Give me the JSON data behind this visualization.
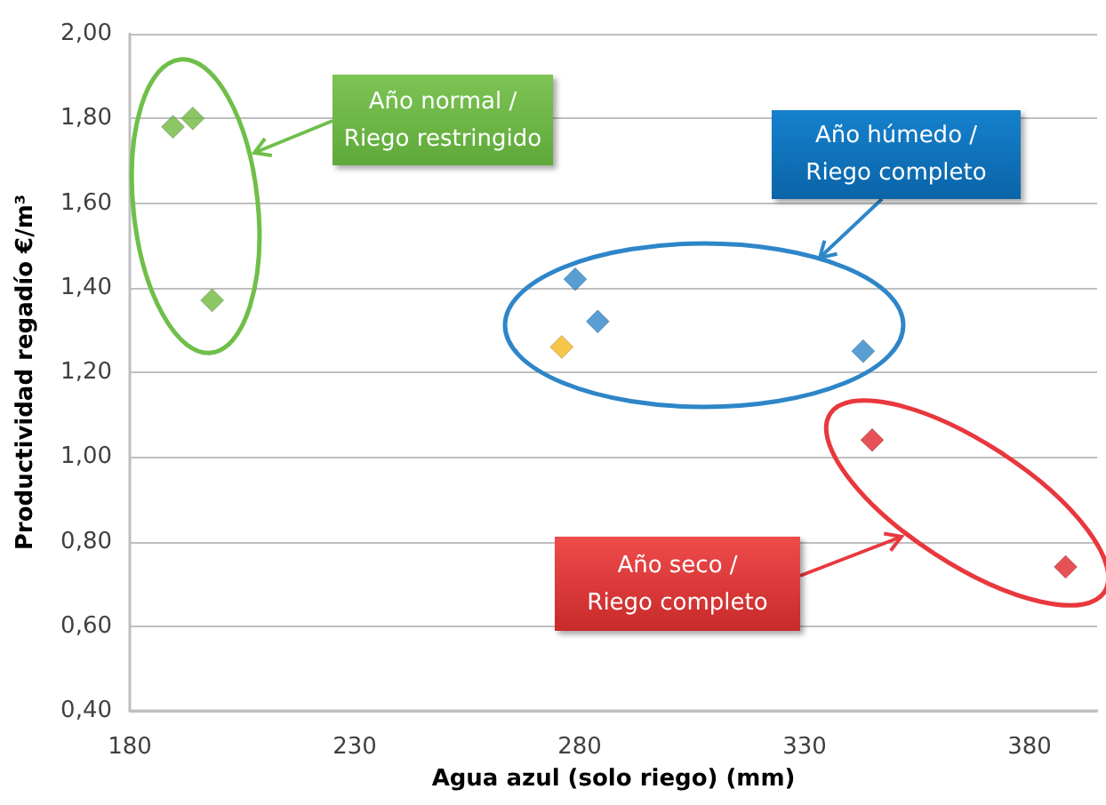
{
  "chart_data": {
    "type": "scatter",
    "xlabel": "Agua azul (solo riego) (mm)",
    "ylabel": "Productividad regadío €/m³",
    "annotations": [
      "Año normal / Riego restringido",
      "Año húmedo / Riego completo",
      "Año seco / Riego completo"
    ],
    "series": [
      {
        "color": "#6fb83f",
        "x": [
          189.6,
          194,
          198.3
        ],
        "values": [
          1.78,
          1.8,
          1.37
        ]
      },
      {
        "color": "#2e86c8",
        "x": [
          279,
          284,
          343
        ],
        "values": [
          1.42,
          1.32,
          1.25
        ]
      },
      {
        "color": "#f2b81b",
        "x": [
          276
        ],
        "values": [
          1.26
        ]
      },
      {
        "color": "#e0262c",
        "x": [
          345,
          388
        ],
        "values": [
          1.04,
          0.74
        ]
      }
    ],
    "xlim": [
      180,
      395
    ],
    "xticks": [
      180,
      230,
      280,
      330,
      380
    ],
    "ylim": [
      0.4,
      2
    ],
    "yticks": [
      {
        "value": 0.4,
        "label": "0,40"
      },
      {
        "value": 0.6,
        "label": "0,60"
      },
      {
        "value": 0.8,
        "label": "0,80"
      },
      {
        "value": 1,
        "label": "1,00"
      },
      {
        "value": 1.2,
        "label": "1,20"
      },
      {
        "value": 1.4,
        "label": "1,40"
      },
      {
        "value": 1.6,
        "label": "1,60"
      },
      {
        "value": 1.8,
        "label": "1,80"
      },
      {
        "value": 2,
        "label": "2,00"
      }
    ],
    "grid": "y",
    "marker": "diamond"
  }
}
